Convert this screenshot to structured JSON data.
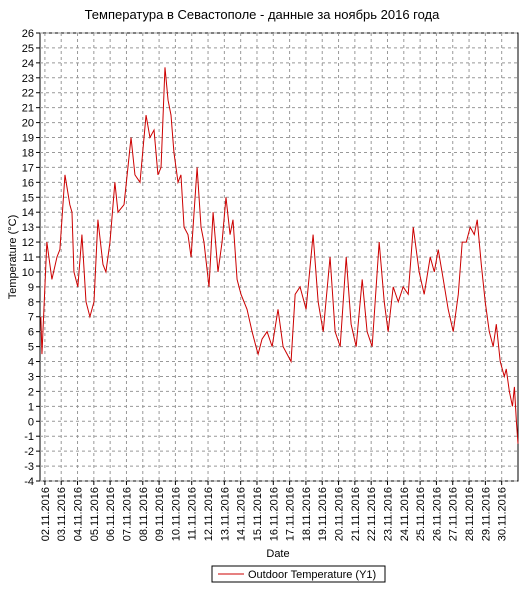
{
  "chart_data": {
    "type": "line",
    "title": "Температура в Севастополе - данные за ноябрь 2016 года",
    "x_label": "Date",
    "y_label": "Temperature (°C)",
    "x": [
      1.75,
      1.82,
      2.12,
      2.43,
      2.74,
      2.92,
      3.23,
      3.53,
      3.66,
      3.78,
      4.02,
      4.27,
      4.52,
      4.76,
      5.01,
      5.25,
      5.56,
      5.74,
      5.99,
      6.29,
      6.48,
      6.85,
      7.09,
      7.28,
      7.52,
      7.83,
      8.2,
      8.44,
      8.69,
      8.93,
      9.12,
      9.36,
      9.55,
      9.73,
      9.91,
      10.16,
      10.34,
      10.53,
      10.77,
      10.96,
      11.33,
      11.57,
      11.75,
      12.06,
      12.31,
      12.61,
      12.86,
      13.1,
      13.35,
      13.53,
      13.78,
      14.02,
      14.39,
      14.7,
      14.94,
      15.07,
      15.31,
      15.62,
      15.93,
      16.29,
      16.6,
      17.09,
      17.34,
      17.64,
      18.01,
      18.44,
      18.75,
      19.06,
      19.48,
      19.79,
      20.1,
      20.47,
      20.77,
      21.08,
      21.45,
      21.75,
      22.06,
      22.49,
      22.8,
      23.04,
      23.35,
      23.66,
      23.96,
      24.27,
      24.58,
      24.94,
      25.25,
      25.62,
      25.87,
      26.11,
      26.42,
      26.72,
      27.03,
      27.34,
      27.58,
      27.83,
      28.07,
      28.32,
      28.5,
      28.75,
      28.99,
      29.24,
      29.48,
      29.67,
      29.91,
      30.16,
      30.28,
      30.47,
      30.66,
      30.78,
      30.9,
      31.0
    ],
    "series": [
      {
        "name": "Outdoor Temperature (Y1)",
        "color": "#cc0000",
        "values": [
          7,
          4.5,
          12,
          9.5,
          11,
          11.5,
          16.5,
          14.5,
          14,
          10,
          9,
          12.5,
          8,
          7,
          8,
          13.5,
          10.5,
          10,
          12,
          16,
          14,
          14.5,
          17,
          19,
          16.5,
          16,
          20.5,
          19,
          19.5,
          16.5,
          17,
          23.7,
          21.5,
          20.5,
          18,
          16,
          16.5,
          13,
          12.5,
          11,
          17,
          13,
          12,
          9,
          14,
          10,
          12,
          15,
          12.5,
          13.5,
          9.5,
          8.5,
          7.5,
          6,
          5,
          4.5,
          5.5,
          6,
          5,
          7.5,
          5,
          4,
          8.5,
          9,
          7.5,
          12.5,
          8,
          6,
          11,
          6,
          5,
          11,
          6.5,
          5,
          9.5,
          6,
          5,
          12,
          8,
          6,
          9,
          8,
          9,
          8.5,
          13,
          10,
          8.5,
          11,
          10,
          11.5,
          9.5,
          7.5,
          6,
          8.5,
          12,
          12,
          13,
          12.5,
          13.5,
          10.5,
          8,
          6,
          5,
          6.5,
          4,
          3,
          3.5,
          2,
          1,
          2.3,
          0,
          -1.5
        ]
      }
    ],
    "xlim": [
      1.7,
      31.0
    ],
    "xticks": [
      {
        "value": 2,
        "label": "02.11.2016"
      },
      {
        "value": 3,
        "label": "03.11.2016"
      },
      {
        "value": 4,
        "label": "04.11.2016"
      },
      {
        "value": 5,
        "label": "05.11.2016"
      },
      {
        "value": 6,
        "label": "06.11.2016"
      },
      {
        "value": 7,
        "label": "07.11.2016"
      },
      {
        "value": 8,
        "label": "08.11.2016"
      },
      {
        "value": 9,
        "label": "09.11.2016"
      },
      {
        "value": 10,
        "label": "10.11.2016"
      },
      {
        "value": 11,
        "label": "11.11.2016"
      },
      {
        "value": 12,
        "label": "12.11.2016"
      },
      {
        "value": 13,
        "label": "13.11.2016"
      },
      {
        "value": 14,
        "label": "14.11.2016"
      },
      {
        "value": 15,
        "label": "15.11.2016"
      },
      {
        "value": 16,
        "label": "16.11.2016"
      },
      {
        "value": 17,
        "label": "17.11.2016"
      },
      {
        "value": 18,
        "label": "18.11.2016"
      },
      {
        "value": 19,
        "label": "19.11.2016"
      },
      {
        "value": 20,
        "label": "20.11.2016"
      },
      {
        "value": 21,
        "label": "21.11.2016"
      },
      {
        "value": 22,
        "label": "22.11.2016"
      },
      {
        "value": 23,
        "label": "23.11.2016"
      },
      {
        "value": 24,
        "label": "24.11.2016"
      },
      {
        "value": 25,
        "label": "25.11.2016"
      },
      {
        "value": 26,
        "label": "26.11.2016"
      },
      {
        "value": 27,
        "label": "27.11.2016"
      },
      {
        "value": 28,
        "label": "28.11.2016"
      },
      {
        "value": 29,
        "label": "29.11.2016"
      },
      {
        "value": 30,
        "label": "30.11.2016"
      }
    ],
    "ylim": [
      -4,
      26
    ],
    "yticks": [
      -4,
      -3,
      -2,
      -1,
      0,
      1,
      2,
      3,
      4,
      5,
      6,
      7,
      8,
      9,
      10,
      11,
      12,
      13,
      14,
      15,
      16,
      17,
      18,
      19,
      20,
      21,
      22,
      23,
      24,
      25,
      26
    ],
    "grid": true
  }
}
